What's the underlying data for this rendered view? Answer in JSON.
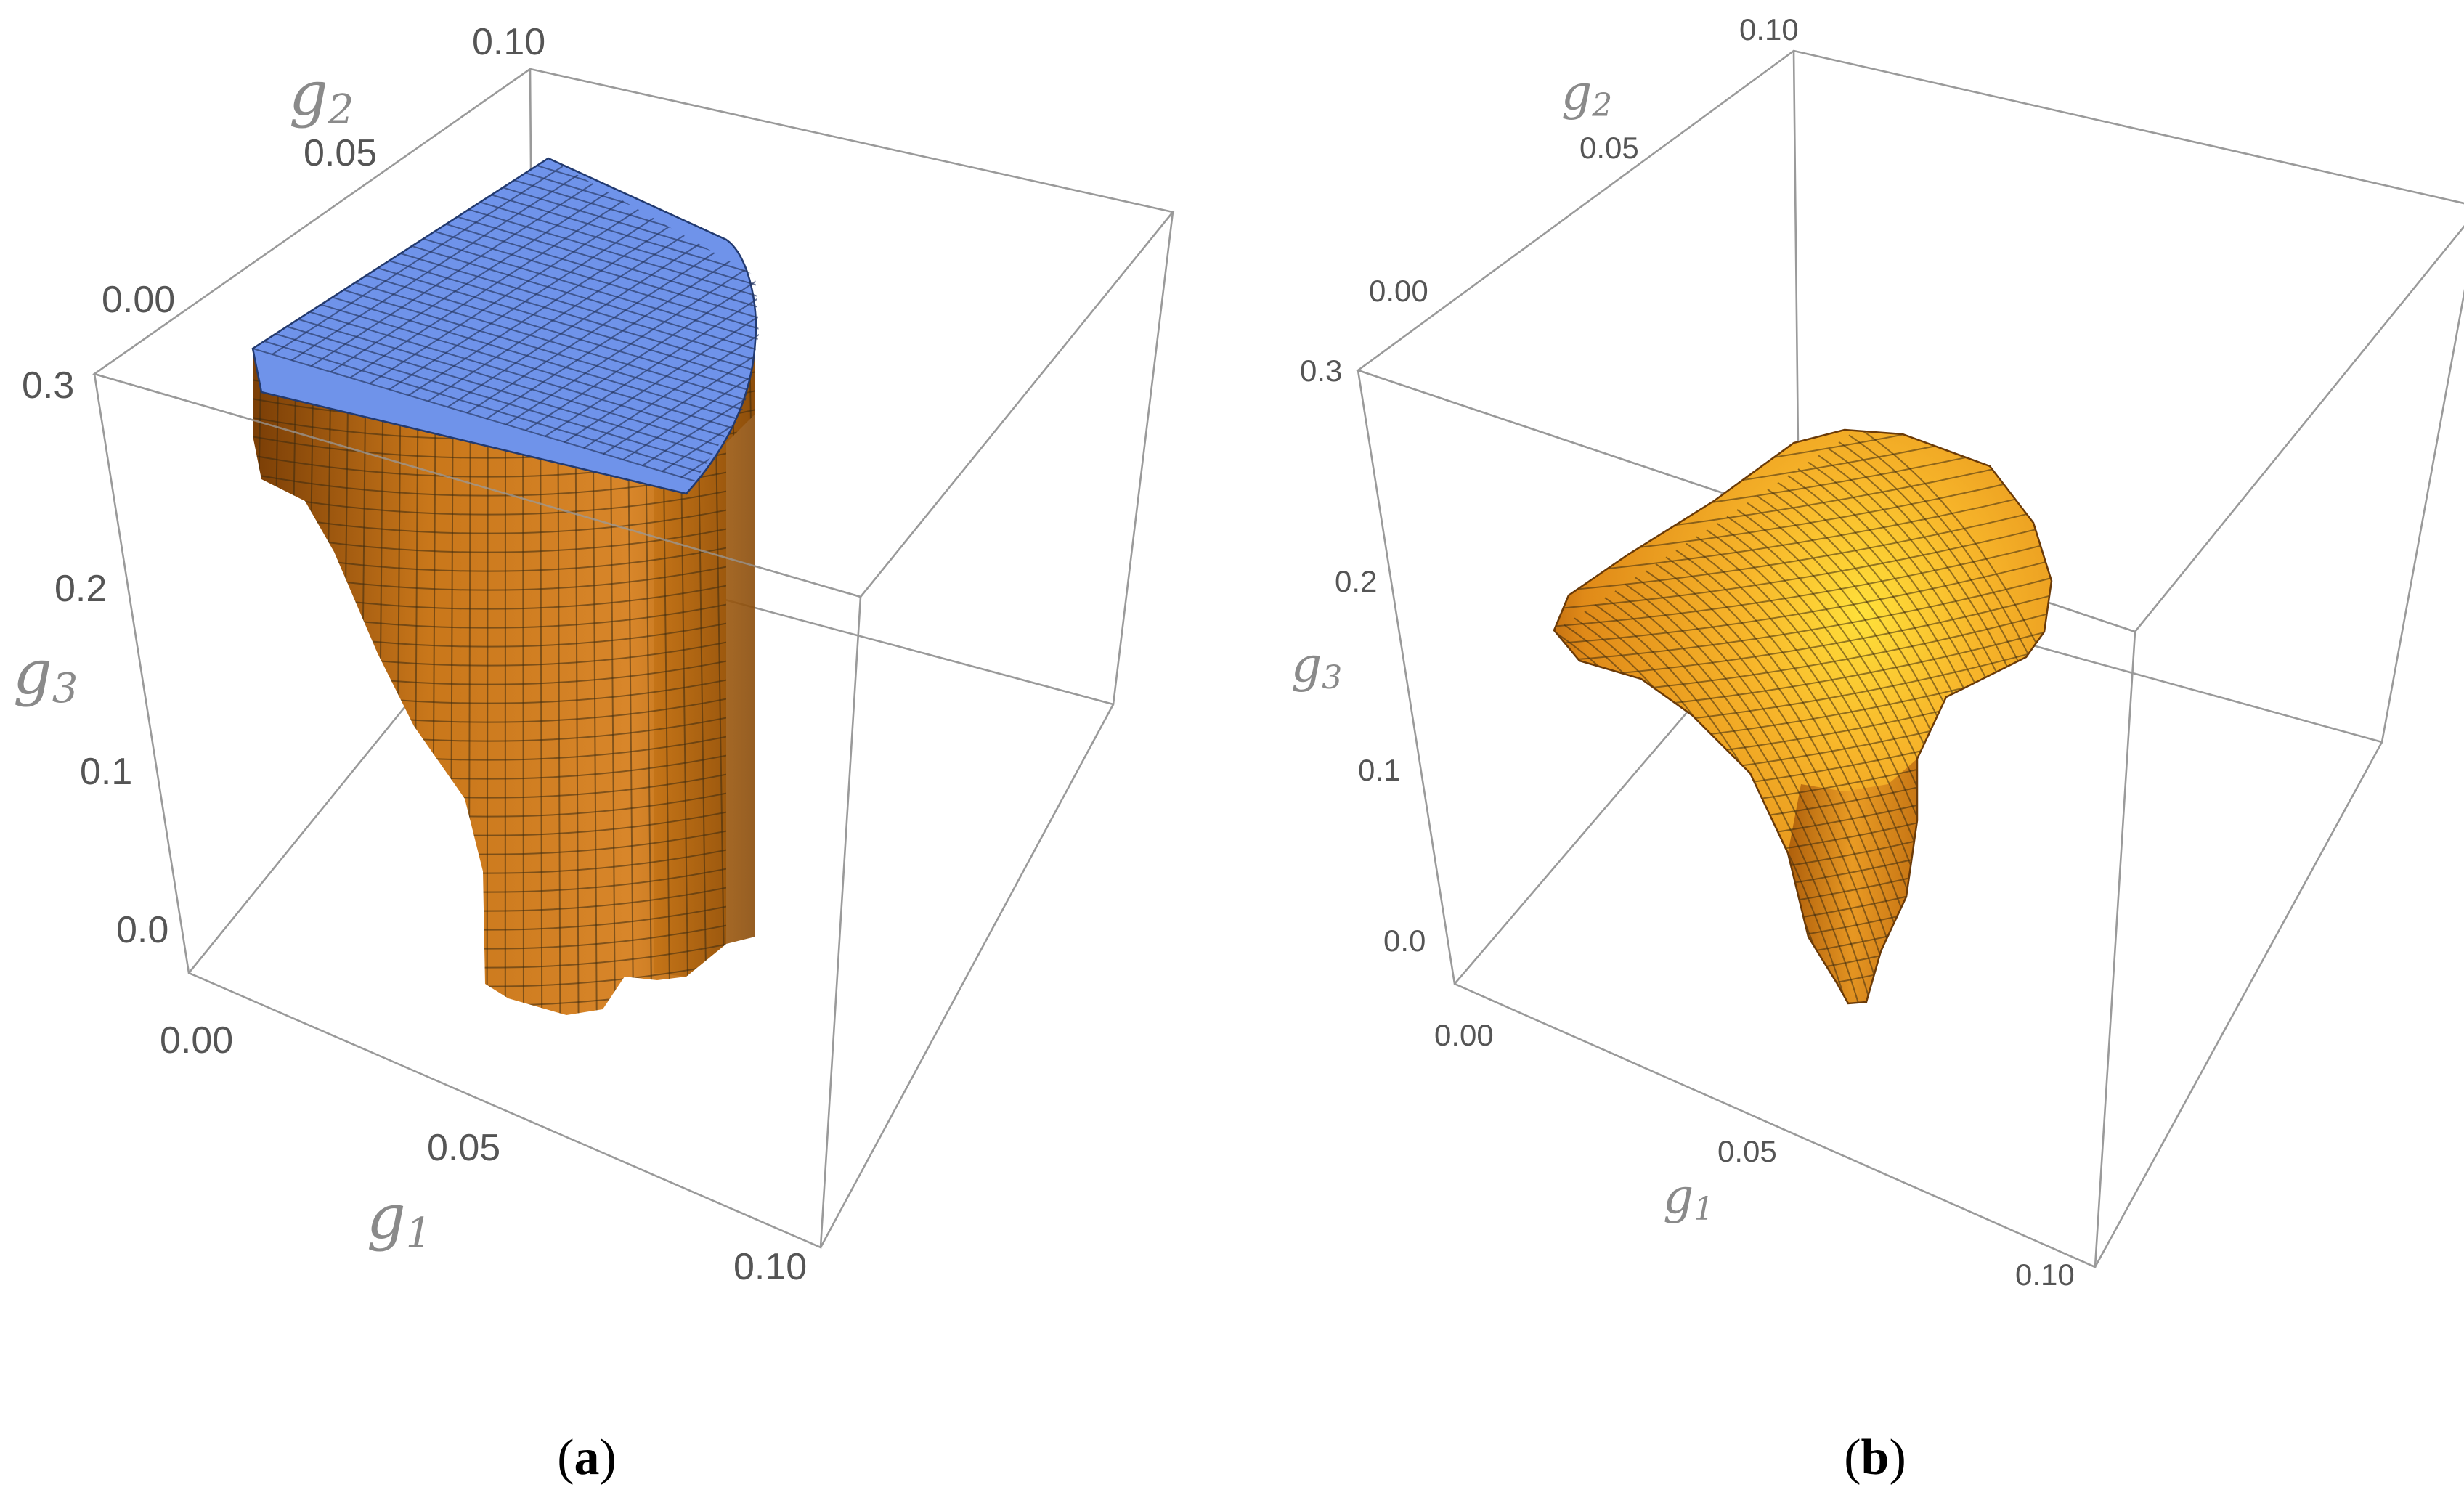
{
  "chart_data": [
    {
      "type": "3d-surface",
      "panel_label": "a",
      "x_axis_label": "g1",
      "y_axis_label": "g2",
      "z_axis_label": "g3",
      "x_ticks": [
        "0.00",
        "0.05",
        "0.10"
      ],
      "y_ticks": [
        "0.00",
        "0.05",
        "0.10"
      ],
      "z_ticks": [
        "0.0",
        "0.1",
        "0.2",
        "0.3"
      ],
      "xlim": [
        0,
        0.1
      ],
      "ylim": [
        0,
        0.1
      ],
      "zlim": [
        -0.03,
        0.3
      ],
      "surface_color": "#d98a1a",
      "cap_color": "#6b8fe6",
      "capped_at_top": true
    },
    {
      "type": "3d-surface",
      "panel_label": "b",
      "x_axis_label": "g1",
      "y_axis_label": "g2",
      "z_axis_label": "g3",
      "x_ticks": [
        "0.00",
        "0.05",
        "0.10"
      ],
      "y_ticks": [
        "0.00",
        "0.05",
        "0.10"
      ],
      "z_ticks": [
        "0.0",
        "0.1",
        "0.2",
        "0.3"
      ],
      "xlim": [
        0,
        0.1
      ],
      "ylim": [
        0,
        0.1
      ],
      "zlim": [
        -0.03,
        0.3
      ],
      "surface_color": "#f0a020",
      "capped_at_top": false
    }
  ],
  "captions": {
    "a": "a",
    "b": "b"
  }
}
